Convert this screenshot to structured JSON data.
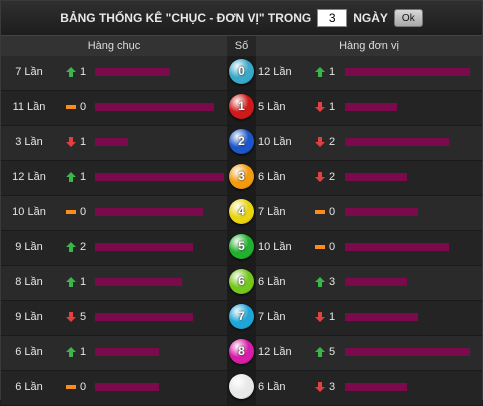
{
  "title": {
    "prefix": "BẢNG THỐNG KÊ \"CHỤC - ĐƠN VỊ\" TRONG",
    "days_value": "3",
    "suffix": "NGÀY",
    "ok_label": "Ok"
  },
  "headers": {
    "tens": "Hàng chục",
    "digit": "Số",
    "units": "Hàng đơn vị"
  },
  "colors": {
    "bar": "#7b0a4c",
    "up": "#3cb64a",
    "down": "#e04040",
    "same": "#ff8c1a"
  },
  "rows": [
    {
      "digit": "0",
      "ball_color": "#3aa9c9",
      "tens": {
        "count": "7 Lần",
        "trend": "up",
        "delta": "1",
        "level": 0.36
      },
      "units": {
        "count": "12 Lần",
        "trend": "up",
        "delta": "1",
        "level": 0.6
      }
    },
    {
      "digit": "1",
      "ball_color": "#d01a1a",
      "tens": {
        "count": "11 Lần",
        "trend": "same",
        "delta": "0",
        "level": 0.57
      },
      "units": {
        "count": "5 Lần",
        "trend": "down",
        "delta": "1",
        "level": 0.25
      }
    },
    {
      "digit": "2",
      "ball_color": "#1c56c8",
      "tens": {
        "count": "3 Lần",
        "trend": "down",
        "delta": "1",
        "level": 0.16
      },
      "units": {
        "count": "10 Lần",
        "trend": "down",
        "delta": "2",
        "level": 0.5
      }
    },
    {
      "digit": "3",
      "ball_color": "#f29a10",
      "tens": {
        "count": "12 Lần",
        "trend": "up",
        "delta": "1",
        "level": 0.62
      },
      "units": {
        "count": "6 Lần",
        "trend": "down",
        "delta": "2",
        "level": 0.3
      }
    },
    {
      "digit": "4",
      "ball_color": "#e8d410",
      "tens": {
        "count": "10 Lần",
        "trend": "same",
        "delta": "0",
        "level": 0.52
      },
      "units": {
        "count": "7 Lần",
        "trend": "same",
        "delta": "0",
        "level": 0.35
      }
    },
    {
      "digit": "5",
      "ball_color": "#22b02e",
      "tens": {
        "count": "9 Lần",
        "trend": "up",
        "delta": "2",
        "level": 0.47
      },
      "units": {
        "count": "10 Lần",
        "trend": "same",
        "delta": "0",
        "level": 0.5
      }
    },
    {
      "digit": "6",
      "ball_color": "#74c81c",
      "tens": {
        "count": "8 Lần",
        "trend": "up",
        "delta": "1",
        "level": 0.42
      },
      "units": {
        "count": "6 Lần",
        "trend": "up",
        "delta": "3",
        "level": 0.3
      }
    },
    {
      "digit": "7",
      "ball_color": "#1fa6d8",
      "tens": {
        "count": "9 Lần",
        "trend": "down",
        "delta": "5",
        "level": 0.47
      },
      "units": {
        "count": "7 Lần",
        "trend": "down",
        "delta": "1",
        "level": 0.35
      }
    },
    {
      "digit": "8",
      "ball_color": "#d81ea8",
      "tens": {
        "count": "6 Lần",
        "trend": "up",
        "delta": "1",
        "level": 0.31
      },
      "units": {
        "count": "12 Lần",
        "trend": "up",
        "delta": "5",
        "level": 0.6
      }
    },
    {
      "digit": "",
      "ball_color": "#e8e8e8",
      "tens": {
        "count": "6 Lần",
        "trend": "same",
        "delta": "0",
        "level": 0.31
      },
      "units": {
        "count": "6 Lần",
        "trend": "down",
        "delta": "3",
        "level": 0.3
      }
    }
  ]
}
